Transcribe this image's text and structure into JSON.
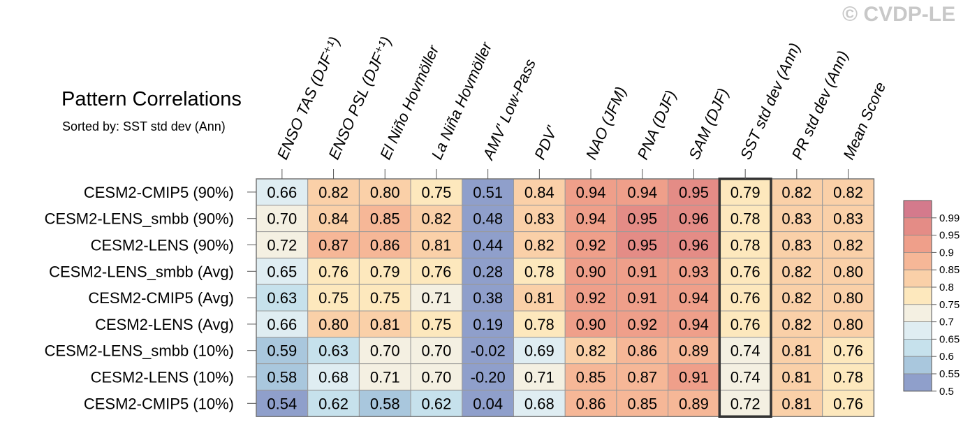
{
  "watermark": "© CVDP-LE",
  "chart_data": {
    "type": "heatmap",
    "title": "Pattern Correlations",
    "subtitle": "Sorted by: SST std dev (Ann)",
    "columns": [
      "ENSO TAS (DJF⁺¹)",
      "ENSO PSL (DJF⁺¹)",
      "El Niño Hovmöller",
      "La Niña Hovmöller",
      "AMV' Low-Pass",
      "PDV'",
      "NAO (JFM)",
      "PNA (DJF)",
      "SAM (DJF)",
      "SST std dev (Ann)",
      "PR std dev (Ann)",
      "Mean Score"
    ],
    "rows": [
      "CESM2-CMIP5 (90%)",
      "CESM2-LENS_smbb (90%)",
      "CESM2-LENS (90%)",
      "CESM2-LENS_smbb (Avg)",
      "CESM2-CMIP5 (Avg)",
      "CESM2-LENS (Avg)",
      "CESM2-LENS_smbb (10%)",
      "CESM2-LENS (10%)",
      "CESM2-CMIP5 (10%)"
    ],
    "values": [
      [
        "0.66",
        "0.82",
        "0.80",
        "0.75",
        "0.51",
        "0.84",
        "0.94",
        "0.94",
        "0.95",
        "0.79",
        "0.82",
        "0.82"
      ],
      [
        "0.70",
        "0.84",
        "0.85",
        "0.82",
        "0.48",
        "0.83",
        "0.94",
        "0.95",
        "0.96",
        "0.78",
        "0.83",
        "0.83"
      ],
      [
        "0.72",
        "0.87",
        "0.86",
        "0.81",
        "0.44",
        "0.82",
        "0.92",
        "0.95",
        "0.96",
        "0.78",
        "0.83",
        "0.82"
      ],
      [
        "0.65",
        "0.76",
        "0.79",
        "0.76",
        "0.28",
        "0.78",
        "0.90",
        "0.91",
        "0.93",
        "0.76",
        "0.82",
        "0.80"
      ],
      [
        "0.63",
        "0.75",
        "0.75",
        "0.71",
        "0.38",
        "0.81",
        "0.92",
        "0.91",
        "0.94",
        "0.76",
        "0.82",
        "0.80"
      ],
      [
        "0.66",
        "0.80",
        "0.81",
        "0.75",
        "0.19",
        "0.78",
        "0.90",
        "0.92",
        "0.94",
        "0.76",
        "0.82",
        "0.80"
      ],
      [
        "0.59",
        "0.63",
        "0.70",
        "0.70",
        "-0.02",
        "0.69",
        "0.82",
        "0.86",
        "0.89",
        "0.74",
        "0.81",
        "0.76"
      ],
      [
        "0.58",
        "0.68",
        "0.71",
        "0.70",
        "-0.20",
        "0.71",
        "0.85",
        "0.87",
        "0.91",
        "0.74",
        "0.81",
        "0.78"
      ],
      [
        "0.54",
        "0.62",
        "0.58",
        "0.62",
        "0.04",
        "0.68",
        "0.86",
        "0.85",
        "0.89",
        "0.72",
        "0.81",
        "0.76"
      ]
    ],
    "highlighted_column": "SST std dev (Ann)",
    "colorbar": {
      "labels": [
        "0.99",
        "0.95",
        "0.9",
        "0.85",
        "0.8",
        "0.75",
        "0.7",
        "0.65",
        "0.6",
        "0.55",
        "0.5"
      ],
      "colors": [
        "#d47a8c",
        "#e48c86",
        "#ef9f8a",
        "#f6b797",
        "#fad0a8",
        "#fde8bd",
        "#f4f0e2",
        "#dfedf2",
        "#c6e1ec",
        "#a9c7dd",
        "#8f9fcb"
      ]
    }
  }
}
